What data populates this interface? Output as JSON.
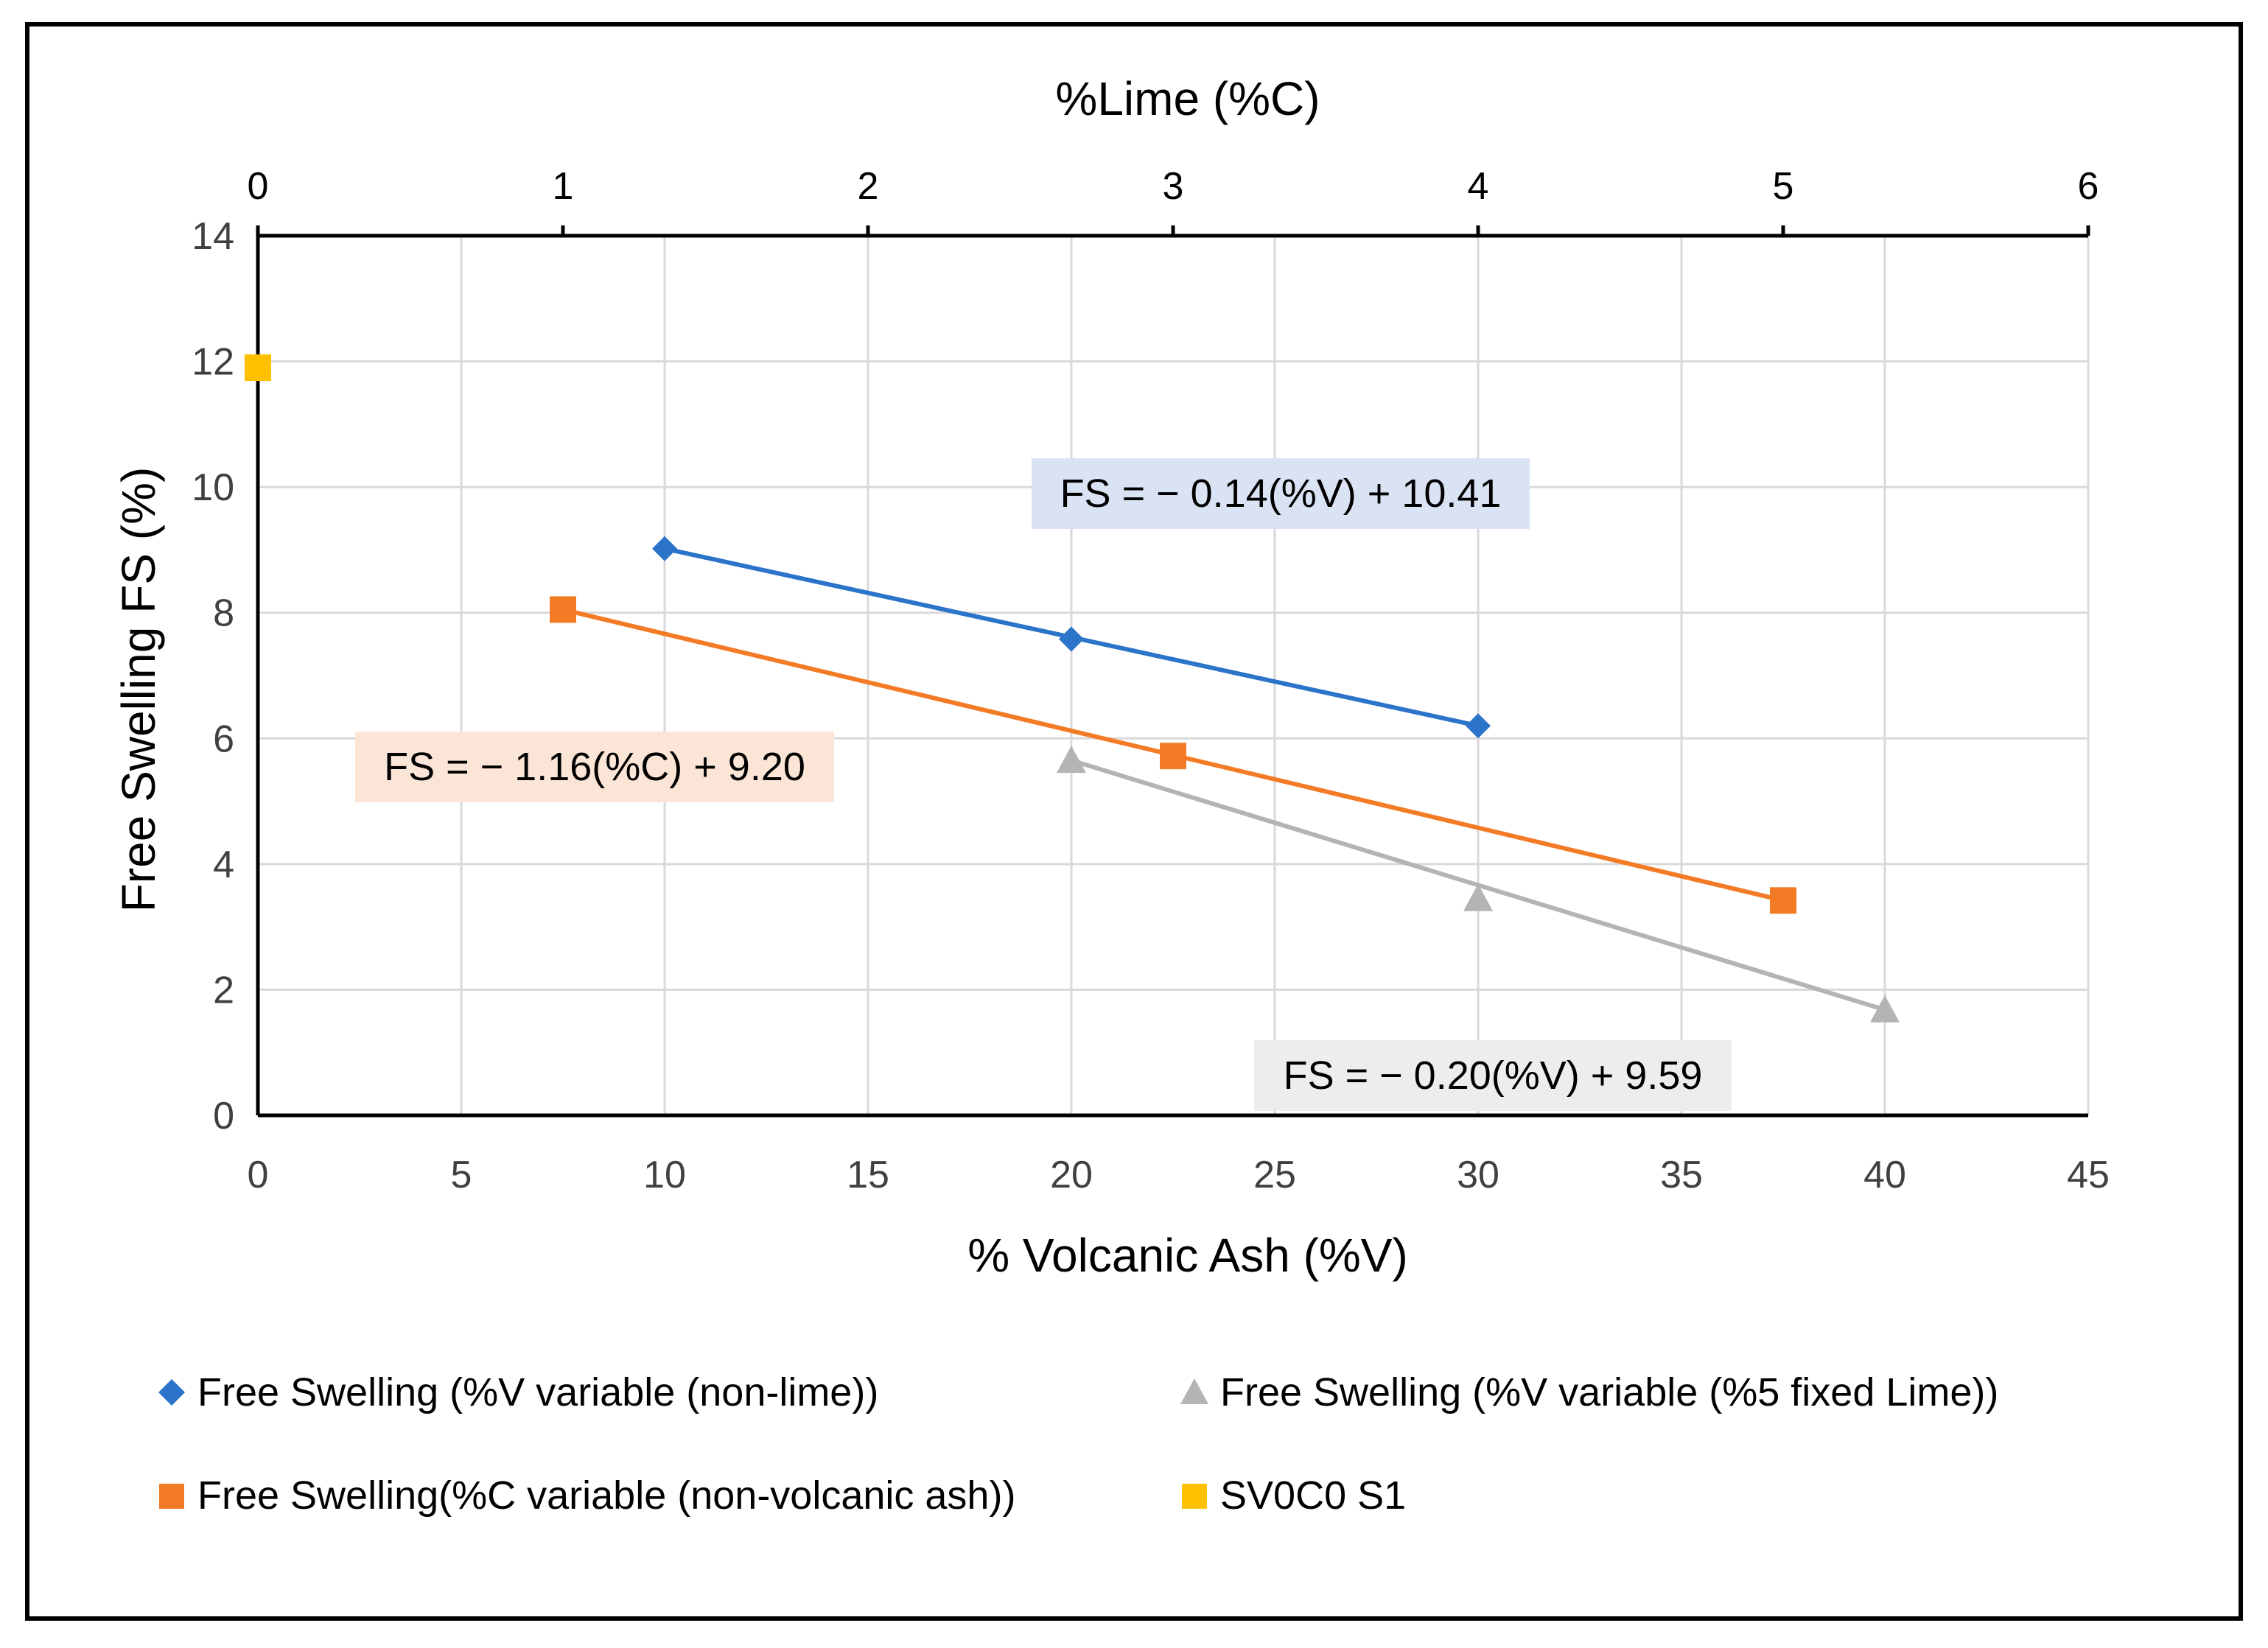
{
  "chart_data": {
    "type": "scatter",
    "x_primary": {
      "label": "% Volcanic Ash (%V)",
      "range": [
        0,
        45
      ],
      "ticks": [
        0,
        5,
        10,
        15,
        20,
        25,
        30,
        35,
        40,
        45
      ]
    },
    "x_secondary": {
      "label": "%Lime (%C)",
      "range": [
        0,
        6
      ],
      "ticks": [
        0,
        1,
        2,
        3,
        4,
        5,
        6
      ]
    },
    "y": {
      "label": "Free Swelling FS (%)",
      "range": [
        0,
        14
      ],
      "ticks": [
        0,
        2,
        4,
        6,
        8,
        10,
        12,
        14
      ]
    },
    "grid": true,
    "legend_position": "bottom",
    "series": [
      {
        "name": "Free Swelling (%V variable (non-lime))",
        "axis": "primary",
        "marker": "diamond",
        "color": "#2B74C9",
        "trendline": true,
        "points": [
          [
            10,
            9.02
          ],
          [
            20,
            7.58
          ],
          [
            30,
            6.2
          ]
        ]
      },
      {
        "name": "Free Swelling (%V variable (%5 fixed Lime))",
        "axis": "primary",
        "marker": "triangle",
        "color": "#B4B4B4",
        "trendline": true,
        "points": [
          [
            20,
            5.65
          ],
          [
            30,
            3.45
          ],
          [
            40,
            1.68
          ]
        ]
      },
      {
        "name": "Free Swelling(%C variable (non-volcanic ash))",
        "axis": "secondary",
        "marker": "square",
        "color": "#F47B25",
        "trendline": true,
        "points": [
          [
            1,
            8.05
          ],
          [
            3,
            5.72
          ],
          [
            5,
            3.42
          ]
        ]
      },
      {
        "name": "SV0C0 S1",
        "axis": "secondary",
        "marker": "square",
        "color": "#FFC000",
        "trendline": false,
        "points": [
          [
            0,
            11.9
          ]
        ]
      }
    ],
    "annotations": [
      {
        "text": "FS = − 0.14(%V) + 10.41",
        "background": "#DAE3F3"
      },
      {
        "text": "FS = − 1.16(%C) + 9.20",
        "background": "#FBE5D6"
      },
      {
        "text": "FS = − 0.20(%V) + 9.59",
        "background": "#EDEDED"
      }
    ]
  }
}
